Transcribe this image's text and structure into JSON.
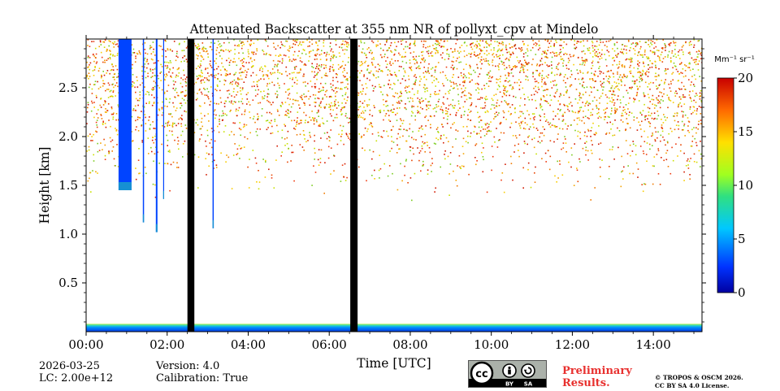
{
  "chart_data": {
    "type": "heatmap",
    "title": "Attenuated Backscatter at 355 nm NR of pollyxt_cpv at Mindelo",
    "xlabel": "Time [UTC]",
    "ylabel": "Height [km]",
    "xlim_hours": [
      0,
      15.2
    ],
    "ylim_km": [
      0,
      3.0
    ],
    "x_ticks": [
      {
        "v": 0,
        "label": "00:00"
      },
      {
        "v": 2,
        "label": "02:00"
      },
      {
        "v": 4,
        "label": "04:00"
      },
      {
        "v": 6,
        "label": "06:00"
      },
      {
        "v": 8,
        "label": "08:00"
      },
      {
        "v": 10,
        "label": "10:00"
      },
      {
        "v": 12,
        "label": "12:00"
      },
      {
        "v": 14,
        "label": "14:00"
      }
    ],
    "y_ticks": [
      {
        "v": 0.5,
        "label": "0.5"
      },
      {
        "v": 1.0,
        "label": "1.0"
      },
      {
        "v": 1.5,
        "label": "1.5"
      },
      {
        "v": 2.0,
        "label": "2.0"
      },
      {
        "v": 2.5,
        "label": "2.5"
      }
    ],
    "colorbar": {
      "unit_label": "Mm⁻¹ sr⁻¹",
      "range": [
        0,
        20
      ],
      "ticks": [
        {
          "v": 0,
          "label": "0"
        },
        {
          "v": 5,
          "label": "5"
        },
        {
          "v": 10,
          "label": "10"
        },
        {
          "v": 15,
          "label": "15"
        },
        {
          "v": 20,
          "label": "20"
        }
      ]
    },
    "no_data_gaps_hours": [
      [
        2.5,
        2.67
      ],
      [
        6.52,
        6.7
      ]
    ],
    "cloud_segments": [
      {
        "t_start": 0.8,
        "t_end": 1.12,
        "base_km": 1.45,
        "top_km": 3.0
      },
      {
        "t_start": 1.4,
        "t_end": 1.43,
        "base_km": 1.12,
        "top_km": 3.0
      },
      {
        "t_start": 1.72,
        "t_end": 1.76,
        "base_km": 1.02,
        "top_km": 3.0
      },
      {
        "t_start": 1.9,
        "t_end": 1.92,
        "base_km": 1.36,
        "top_km": 3.0
      },
      {
        "t_start": 3.12,
        "t_end": 3.15,
        "base_km": 1.06,
        "top_km": 3.0
      }
    ],
    "noise_region_base_km": 1.7,
    "near_surface_layer_km": [
      0,
      0.08
    ]
  },
  "footer": {
    "date": "2026-03-25",
    "lc": "LC: 2.00e+12",
    "version": "Version: 4.0",
    "calibration": "Calibration: True",
    "license_badge": {
      "cc": "cc",
      "by": "BY",
      "sa": "SA"
    },
    "preliminary_line1": "Preliminary",
    "preliminary_line2": "Results.",
    "copyright_line1": "© TROPOS & OSCM 2026.",
    "copyright_line2": "CC BY SA 4.0 License."
  },
  "colors": {
    "jet_blue": "#0044ff",
    "jet_red": "#cc1100",
    "gap": "#000000",
    "preliminary": "#e8302e"
  }
}
